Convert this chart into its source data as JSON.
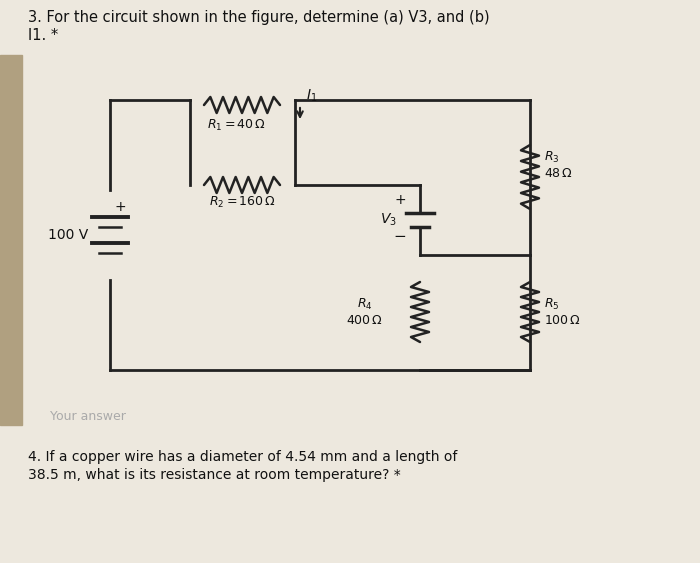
{
  "title_line1": "3. For the circuit shown in the figure, determine (a) V3, and (b)",
  "title_line2": "I1. *",
  "question2_line1": "4. If a copper wire has a diameter of 4.54 mm and a length of",
  "question2_line2": "38.5 m, what is its resistance at room temperature? *",
  "your_answer_text": "Your answer",
  "bg_color": "#ede8de",
  "left_strip_color": "#b0a080",
  "circuit_bg_color": "#ddd8c8",
  "R1_label": "$R_1 = 40\\,\\Omega$",
  "R2_label": "$R_2 = 160\\,\\Omega$",
  "R3_label": "$R_3$\n$48\\,\\Omega$",
  "R4_label": "$R_4$\n$400\\,\\Omega$",
  "R5_label": "$R_5$\n$100\\,\\Omega$",
  "V3_label": "$V_3$",
  "I1_label": "$I_1$",
  "source_label": "100 V",
  "text_color": "#111111",
  "wire_color": "#222222",
  "resistor_color": "#222222",
  "faint_color": "#aaaaaa"
}
